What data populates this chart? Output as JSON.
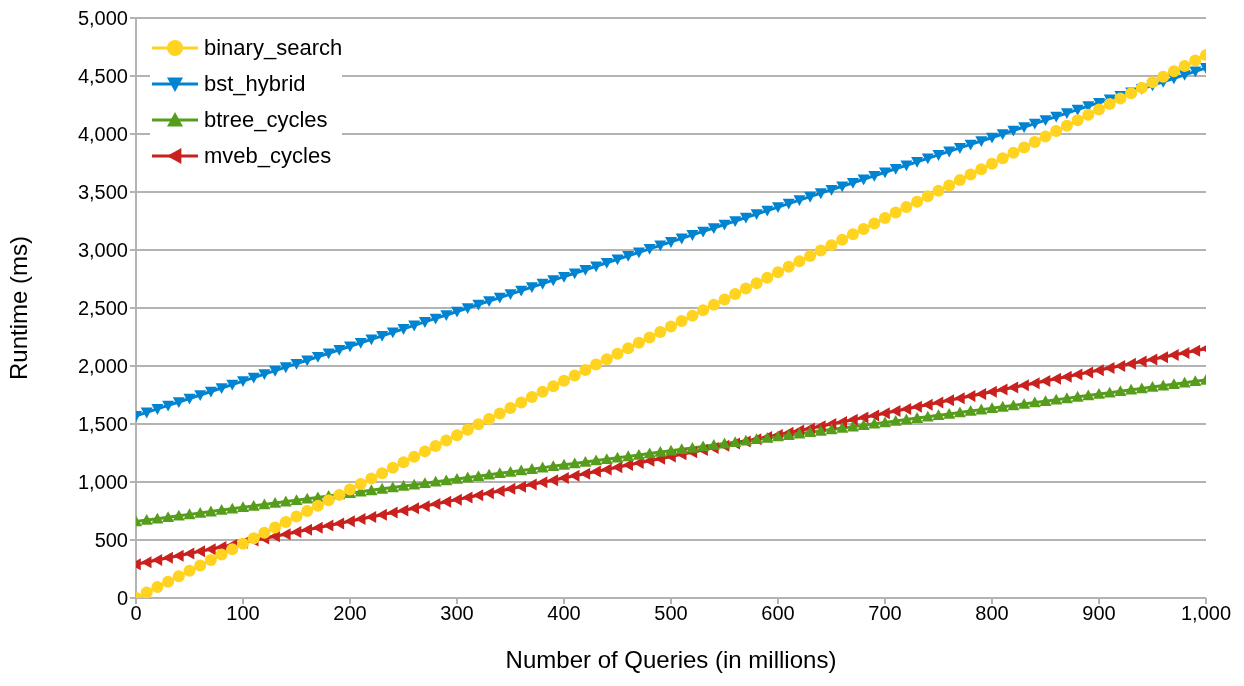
{
  "chart_data": {
    "type": "line",
    "xlabel": "Number of Queries (in millions)",
    "ylabel": "Runtime (ms)",
    "x": [
      0,
      10,
      20,
      30,
      40,
      50,
      60,
      70,
      80,
      90,
      100,
      110,
      120,
      130,
      140,
      150,
      160,
      170,
      180,
      190,
      200,
      210,
      220,
      230,
      240,
      250,
      260,
      270,
      280,
      290,
      300,
      310,
      320,
      330,
      340,
      350,
      360,
      370,
      380,
      390,
      400,
      410,
      420,
      430,
      440,
      450,
      460,
      470,
      480,
      490,
      500,
      510,
      520,
      530,
      540,
      550,
      560,
      570,
      580,
      590,
      600,
      610,
      620,
      630,
      640,
      650,
      660,
      670,
      680,
      690,
      700,
      710,
      720,
      730,
      740,
      750,
      760,
      770,
      780,
      790,
      800,
      810,
      820,
      830,
      840,
      850,
      860,
      870,
      880,
      890,
      900,
      910,
      920,
      930,
      940,
      950,
      960,
      970,
      980,
      990,
      1000
    ],
    "xlim": [
      0,
      1000
    ],
    "xticks": [
      {
        "value": 0,
        "label": "0"
      },
      {
        "value": 100,
        "label": "100"
      },
      {
        "value": 200,
        "label": "200"
      },
      {
        "value": 300,
        "label": "300"
      },
      {
        "value": 400,
        "label": "400"
      },
      {
        "value": 500,
        "label": "500"
      },
      {
        "value": 600,
        "label": "600"
      },
      {
        "value": 700,
        "label": "700"
      },
      {
        "value": 800,
        "label": "800"
      },
      {
        "value": 900,
        "label": "900"
      },
      {
        "value": 1000,
        "label": "1,000"
      }
    ],
    "ylim": [
      0,
      5000
    ],
    "yticks": [
      {
        "value": 0,
        "label": "0"
      },
      {
        "value": 500,
        "label": "500"
      },
      {
        "value": 1000,
        "label": "1,000"
      },
      {
        "value": 1500,
        "label": "1,500"
      },
      {
        "value": 2000,
        "label": "2,000"
      },
      {
        "value": 2500,
        "label": "2,500"
      },
      {
        "value": 3000,
        "label": "3,000"
      },
      {
        "value": 3500,
        "label": "3,500"
      },
      {
        "value": 4000,
        "label": "4,000"
      },
      {
        "value": 4500,
        "label": "4,500"
      },
      {
        "value": 5000,
        "label": "5,000"
      }
    ],
    "grid": "y",
    "legend": "top left",
    "line_style": "solid",
    "series": [
      {
        "name": "binary_search",
        "color": "#ffd320",
        "marker": "circle",
        "values": [
          0,
          47,
          94,
          140,
          187,
          234,
          281,
          328,
          374,
          421,
          468,
          515,
          562,
          608,
          655,
          702,
          749,
          796,
          842,
          889,
          936,
          983,
          1030,
          1076,
          1123,
          1170,
          1217,
          1264,
          1310,
          1357,
          1404,
          1451,
          1498,
          1544,
          1591,
          1638,
          1685,
          1732,
          1778,
          1825,
          1872,
          1919,
          1966,
          2012,
          2059,
          2106,
          2153,
          2200,
          2246,
          2293,
          2340,
          2387,
          2434,
          2480,
          2527,
          2574,
          2621,
          2668,
          2714,
          2761,
          2808,
          2855,
          2902,
          2948,
          2995,
          3042,
          3089,
          3136,
          3182,
          3229,
          3276,
          3323,
          3370,
          3416,
          3463,
          3510,
          3557,
          3604,
          3650,
          3697,
          3744,
          3791,
          3838,
          3884,
          3931,
          3978,
          4025,
          4072,
          4118,
          4165,
          4212,
          4259,
          4306,
          4352,
          4399,
          4446,
          4493,
          4540,
          4586,
          4633,
          4680
        ]
      },
      {
        "name": "bst_hybrid",
        "color": "#0084d1",
        "marker": "triangle-down",
        "values": [
          1570,
          1600,
          1630,
          1660,
          1690,
          1720,
          1750,
          1780,
          1810,
          1840,
          1870,
          1900,
          1930,
          1960,
          1990,
          2020,
          2050,
          2080,
          2110,
          2140,
          2170,
          2200,
          2230,
          2260,
          2290,
          2320,
          2350,
          2380,
          2410,
          2440,
          2470,
          2500,
          2530,
          2560,
          2590,
          2620,
          2650,
          2680,
          2710,
          2740,
          2770,
          2800,
          2830,
          2860,
          2890,
          2920,
          2950,
          2980,
          3010,
          3040,
          3070,
          3100,
          3130,
          3160,
          3190,
          3220,
          3250,
          3280,
          3310,
          3340,
          3370,
          3400,
          3430,
          3460,
          3490,
          3520,
          3550,
          3580,
          3610,
          3640,
          3670,
          3700,
          3730,
          3760,
          3790,
          3820,
          3850,
          3880,
          3910,
          3940,
          3970,
          4000,
          4030,
          4060,
          4090,
          4120,
          4150,
          4180,
          4210,
          4240,
          4270,
          4300,
          4330,
          4360,
          4390,
          4420,
          4450,
          4480,
          4510,
          4540,
          4570
        ]
      },
      {
        "name": "btree_cycles",
        "color": "#579d1c",
        "marker": "triangle",
        "values": [
          660,
          672,
          684,
          697,
          709,
          721,
          733,
          745,
          758,
          770,
          782,
          794,
          806,
          819,
          831,
          843,
          855,
          867,
          880,
          892,
          904,
          916,
          928,
          941,
          953,
          965,
          977,
          989,
          1002,
          1014,
          1026,
          1038,
          1050,
          1063,
          1075,
          1087,
          1099,
          1111,
          1124,
          1136,
          1148,
          1160,
          1172,
          1185,
          1197,
          1209,
          1221,
          1233,
          1246,
          1258,
          1270,
          1282,
          1294,
          1307,
          1319,
          1331,
          1343,
          1355,
          1368,
          1380,
          1392,
          1404,
          1416,
          1429,
          1441,
          1453,
          1465,
          1477,
          1490,
          1502,
          1514,
          1526,
          1538,
          1551,
          1563,
          1575,
          1587,
          1599,
          1612,
          1624,
          1636,
          1648,
          1660,
          1673,
          1685,
          1697,
          1709,
          1721,
          1734,
          1746,
          1758,
          1770,
          1782,
          1795,
          1807,
          1819,
          1831,
          1843,
          1856,
          1868,
          1880
        ]
      },
      {
        "name": "mveb_cycles",
        "color": "#c9211e",
        "marker": "triangle-left",
        "values": [
          290,
          309,
          327,
          346,
          364,
          383,
          402,
          420,
          439,
          457,
          476,
          495,
          513,
          532,
          550,
          569,
          588,
          606,
          625,
          643,
          662,
          681,
          699,
          718,
          736,
          755,
          774,
          792,
          811,
          829,
          848,
          867,
          885,
          904,
          922,
          941,
          960,
          978,
          997,
          1015,
          1034,
          1053,
          1071,
          1090,
          1108,
          1127,
          1146,
          1164,
          1183,
          1201,
          1220,
          1239,
          1257,
          1276,
          1294,
          1313,
          1332,
          1350,
          1369,
          1387,
          1406,
          1425,
          1443,
          1462,
          1480,
          1499,
          1518,
          1536,
          1555,
          1573,
          1592,
          1611,
          1629,
          1648,
          1666,
          1685,
          1704,
          1722,
          1741,
          1759,
          1778,
          1797,
          1815,
          1834,
          1852,
          1871,
          1890,
          1908,
          1927,
          1945,
          1964,
          1983,
          2001,
          2020,
          2038,
          2057,
          2076,
          2094,
          2113,
          2131,
          2150
        ]
      }
    ]
  }
}
